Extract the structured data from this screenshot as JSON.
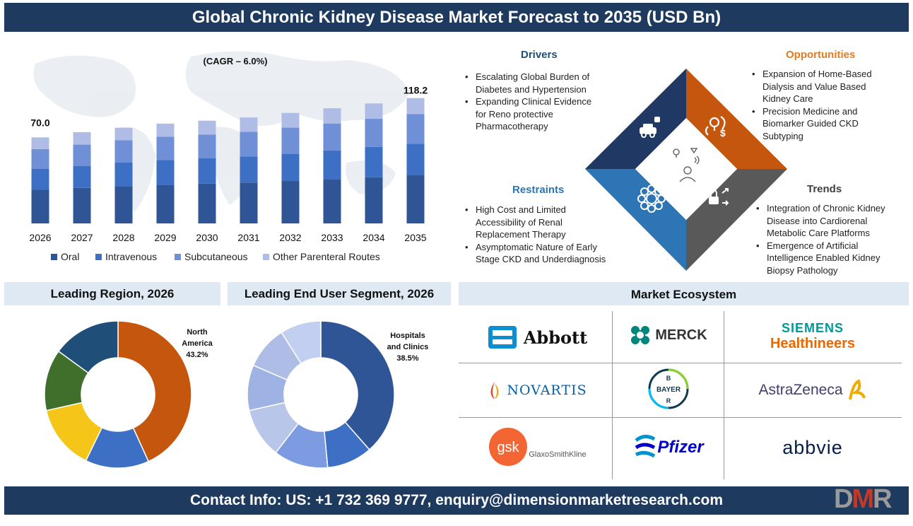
{
  "header": {
    "title": "Global Chronic Kidney Disease Market Forecast to 2035 (USD Bn)"
  },
  "chart_data": [
    {
      "type": "bar",
      "stacked": true,
      "annotation": "(CAGR – 6.0%)",
      "categories": [
        "2026",
        "2027",
        "2028",
        "2029",
        "2030",
        "2031",
        "2032",
        "2033",
        "2034",
        "2035"
      ],
      "series": [
        {
          "name": "Oral",
          "color": "#2f5597",
          "values": [
            27.3,
            28.9,
            30.3,
            31.5,
            32.3,
            33.2,
            34.5,
            35.9,
            37.5,
            39.5
          ]
        },
        {
          "name": "Intravenous",
          "color": "#3d6fc4",
          "values": [
            17.0,
            17.9,
            19.2,
            20.0,
            20.6,
            21.3,
            22.1,
            23.4,
            24.8,
            25.3
          ]
        },
        {
          "name": "Subcutaneous",
          "color": "#6f8fd6",
          "values": [
            16.2,
            17.3,
            18.1,
            19.1,
            19.3,
            20.1,
            21.3,
            22.0,
            22.8,
            24.2
          ]
        },
        {
          "name": "Other Parenteral Routes",
          "color": "#afbde6",
          "values": [
            9.5,
            10.1,
            10.2,
            10.6,
            11.4,
            11.6,
            12.0,
            12.4,
            12.5,
            13.0
          ]
        }
      ],
      "data_labels": {
        "2026": "70.0",
        "2035": "118.2"
      },
      "ylim": [
        0,
        130
      ],
      "legend": "bottom"
    },
    {
      "type": "pie",
      "title": "Leading Region, 2026",
      "donut": true,
      "slices": [
        {
          "value": 43.2,
          "color": "#c5560e",
          "label": "North America 43.2%"
        },
        {
          "value": 14.0,
          "color": "#3d6fc4"
        },
        {
          "value": 14.3,
          "color": "#f5c518"
        },
        {
          "value": 13.5,
          "color": "#3f6f2a"
        },
        {
          "value": 15.0,
          "color": "#1f4e79"
        }
      ]
    },
    {
      "type": "pie",
      "title": "Leading End User Segment, 2026",
      "donut": true,
      "slices": [
        {
          "value": 38.5,
          "color": "#2f5597",
          "label": "Hospitals and Clinics 38.5%"
        },
        {
          "value": 10.0,
          "color": "#3d6fc4"
        },
        {
          "value": 12.0,
          "color": "#7d9be0"
        },
        {
          "value": 11.0,
          "color": "#b8c6ea"
        },
        {
          "value": 10.0,
          "color": "#9eb2e3"
        },
        {
          "value": 9.5,
          "color": "#aebde6"
        },
        {
          "value": 9.0,
          "color": "#c3cff0"
        }
      ]
    }
  ],
  "region_label": {
    "line1": "North",
    "line2": "America",
    "line3": "43.2%"
  },
  "enduser_label": {
    "line1": "Hospitals",
    "line2": "and Clinics",
    "line3": "38.5%"
  },
  "drivers": {
    "title": "Drivers",
    "items": [
      "Escalating Global Burden of Diabetes and Hypertension",
      "Expanding Clinical Evidence for Reno protective Pharmacotherapy"
    ]
  },
  "opportunities": {
    "title": "Opportunities",
    "items": [
      "Expansion of Home-Based Dialysis and Value Based Kidney Care",
      "Precision Medicine and Biomarker Guided CKD Subtyping"
    ]
  },
  "restraints": {
    "title": "Restraints",
    "items": [
      "High Cost and Limited Accessibility of Renal Replacement Therapy",
      "Asymptomatic Nature of Early Stage CKD and Underdiagnosis"
    ]
  },
  "trends": {
    "title": "Trends",
    "items": [
      "Integration of Chronic Kidney Disease into Cardiorenal Metabolic Care Platforms",
      "Emergence of Artificial Intelligence Enabled Kidney Biopsy Pathology"
    ]
  },
  "colors": {
    "drivers": "#1f3864",
    "opportunities": "#c5560e",
    "restraints": "#2e75b6",
    "trends": "#595959",
    "opp_title": "#e07b24",
    "drv_title": "#1f4e79"
  },
  "ecosystem": {
    "title": "Market Ecosystem",
    "logos": [
      "Abbott",
      "MERCK",
      "SIEMENS",
      "Healthineers",
      "NOVARTIS",
      "BAYER",
      "AstraZeneca",
      "gsk",
      "GlaxoSmithKline",
      "Pfizer",
      "abbvie"
    ]
  },
  "footer": {
    "contact": "Contact Info: US: +1 732 369 9777, enquiry@dimensionmarketresearch.com",
    "brand_d": "D",
    "brand_m": "M",
    "brand_r": "R"
  }
}
